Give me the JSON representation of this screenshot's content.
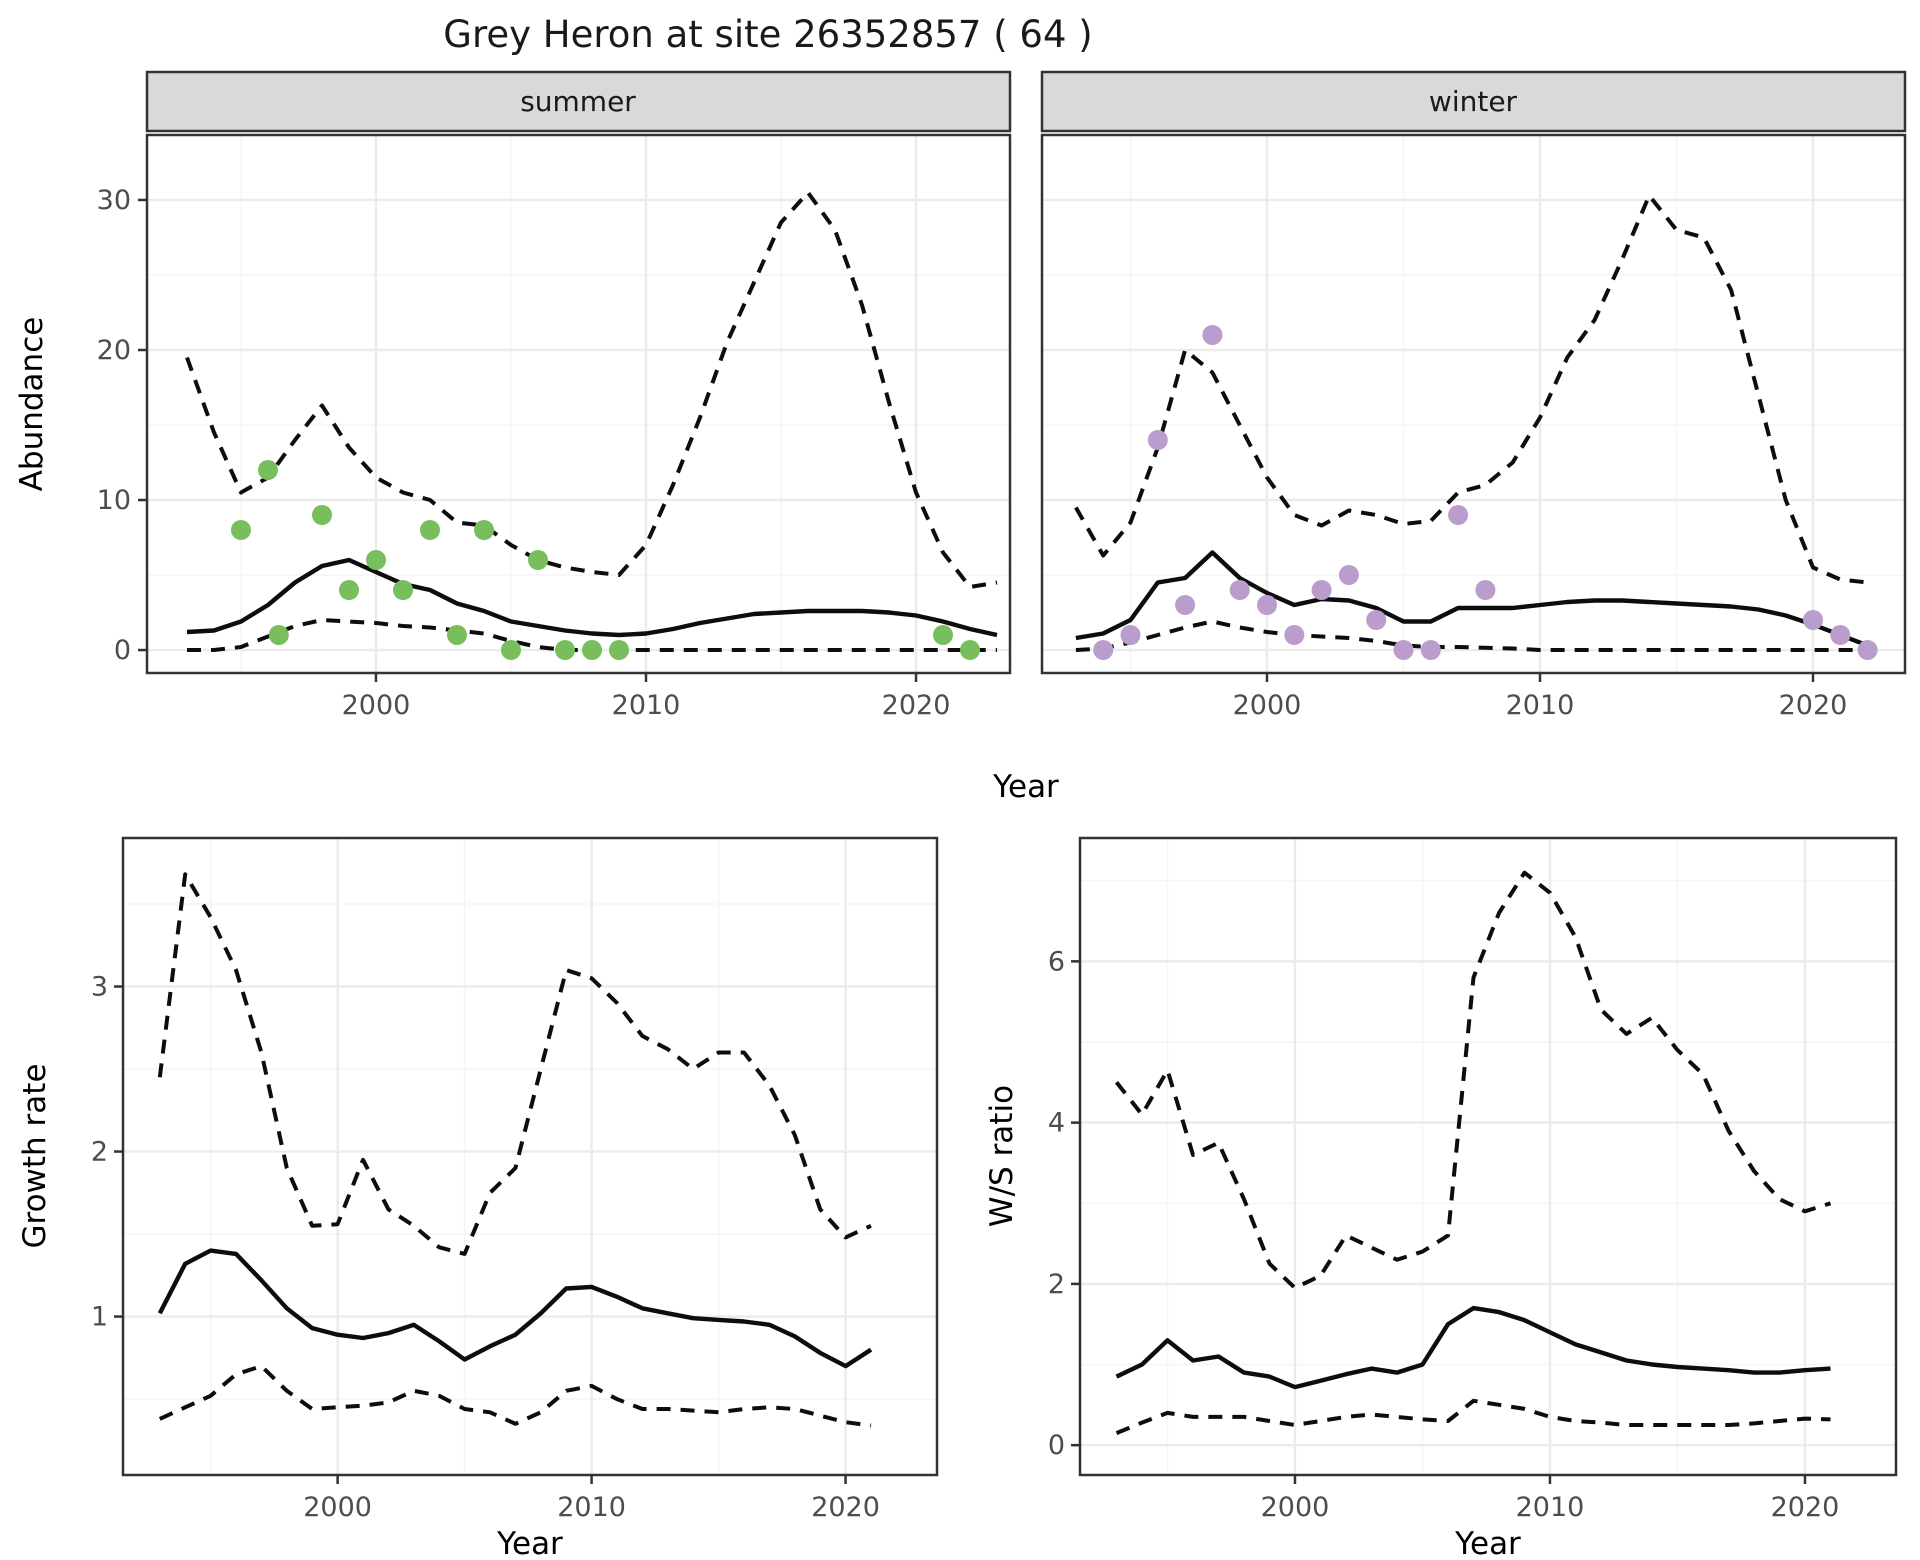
{
  "title": "Grey Heron at site 26352857 ( 64 )",
  "facet_labels": {
    "summer": "summer",
    "winter": "winter"
  },
  "axis_titles": {
    "x_top": "Year",
    "x_growth": "Year",
    "x_ws": "Year",
    "y_abundance": "Abundance",
    "y_growth": "Growth rate",
    "y_ws": "W/S ratio"
  },
  "colors": {
    "summer_points": "#78BE5C",
    "winter_points": "#BB9DCD",
    "line": "#0d0d0d",
    "strip_bg": "#D9D9D9",
    "panel_border": "#333333",
    "grid_major": "#EBEBEB",
    "grid_minor": "#F5F5F5",
    "tick_mark": "#333333"
  },
  "chart_data": [
    {
      "type": "line",
      "id": "abundance-summer",
      "facet": "summer",
      "ylabel": "Abundance",
      "xlabel": "Year",
      "xlim": [
        1991.52,
        2023.48
      ],
      "ylim": [
        -1.53,
        34.33
      ],
      "x_ticks": [
        2000,
        2010,
        2020
      ],
      "x_minor": [
        1995,
        2005,
        2015
      ],
      "y_ticks": [
        0,
        10,
        20,
        30
      ],
      "y_minor": [
        5,
        15,
        25
      ],
      "years": [
        1993,
        1994,
        1995,
        1996,
        1997,
        1998,
        1999,
        2000,
        2001,
        2002,
        2003,
        2004,
        2005,
        2006,
        2007,
        2008,
        2009,
        2010,
        2011,
        2012,
        2013,
        2014,
        2015,
        2016,
        2017,
        2018,
        2019,
        2020,
        2021,
        2022,
        2023
      ],
      "series": [
        {
          "name": "median",
          "style": "solid",
          "values": [
            1.2,
            1.3,
            1.9,
            3.0,
            4.5,
            5.6,
            6.0,
            5.2,
            4.4,
            4.0,
            3.1,
            2.6,
            1.9,
            1.6,
            1.3,
            1.1,
            1.0,
            1.1,
            1.4,
            1.8,
            2.1,
            2.4,
            2.5,
            2.6,
            2.6,
            2.6,
            2.5,
            2.3,
            1.9,
            1.4,
            1.0
          ]
        },
        {
          "name": "upper_ci",
          "style": "dashed",
          "values": [
            19.5,
            14.5,
            10.5,
            11.5,
            14.0,
            16.3,
            13.5,
            11.5,
            10.5,
            10.0,
            8.5,
            8.3,
            7.0,
            6.0,
            5.5,
            5.2,
            5.0,
            7.0,
            11.0,
            15.5,
            20.5,
            24.5,
            28.5,
            30.5,
            28.0,
            23.0,
            16.5,
            10.5,
            6.5,
            4.2,
            4.5
          ]
        },
        {
          "name": "lower_ci",
          "style": "dashed",
          "values": [
            0,
            0,
            0.2,
            0.9,
            1.6,
            2.0,
            1.9,
            1.8,
            1.6,
            1.5,
            1.3,
            1.1,
            0.6,
            0.2,
            0,
            0,
            0,
            0,
            0,
            0,
            0,
            0,
            0,
            0,
            0,
            0,
            0,
            0,
            0,
            0,
            0
          ]
        }
      ],
      "points": {
        "name": "observed_counts_summer",
        "color": "#78BE5C",
        "data": [
          [
            1995,
            8
          ],
          [
            1996,
            12
          ],
          [
            1996.4,
            1
          ],
          [
            1998,
            9
          ],
          [
            1999,
            4
          ],
          [
            2000,
            6
          ],
          [
            2001,
            4
          ],
          [
            2002,
            8
          ],
          [
            2003,
            1
          ],
          [
            2004,
            8
          ],
          [
            2005,
            0
          ],
          [
            2006,
            6
          ],
          [
            2007,
            0
          ],
          [
            2008,
            0
          ],
          [
            2009,
            0
          ],
          [
            2021,
            1
          ],
          [
            2022,
            0
          ]
        ]
      }
    },
    {
      "type": "line",
      "id": "abundance-winter",
      "facet": "winter",
      "ylabel": "Abundance",
      "xlabel": "Year",
      "xlim": [
        1991.76,
        2023.37
      ],
      "ylim": [
        -1.53,
        34.33
      ],
      "x_ticks": [
        2000,
        2010,
        2020
      ],
      "x_minor": [
        1995,
        2005,
        2015
      ],
      "y_ticks": [
        0,
        10,
        20,
        30
      ],
      "y_minor": [
        5,
        15,
        25
      ],
      "years": [
        1993,
        1994,
        1995,
        1996,
        1997,
        1998,
        1999,
        2000,
        2001,
        2002,
        2003,
        2004,
        2005,
        2006,
        2007,
        2008,
        2009,
        2010,
        2011,
        2012,
        2013,
        2014,
        2015,
        2016,
        2017,
        2018,
        2019,
        2020,
        2021,
        2022
      ],
      "series": [
        {
          "name": "median",
          "style": "solid",
          "values": [
            0.8,
            1.1,
            2.0,
            4.5,
            4.8,
            6.5,
            4.8,
            3.8,
            3.0,
            3.4,
            3.3,
            2.8,
            1.9,
            1.9,
            2.8,
            2.8,
            2.8,
            3.0,
            3.2,
            3.3,
            3.3,
            3.2,
            3.1,
            3.0,
            2.9,
            2.7,
            2.3,
            1.7,
            1.0,
            0.3
          ]
        },
        {
          "name": "upper_ci",
          "style": "dashed",
          "values": [
            9.5,
            6.3,
            8.5,
            13.5,
            20.0,
            18.5,
            15.0,
            11.5,
            9.0,
            8.3,
            9.3,
            9.0,
            8.4,
            8.6,
            10.5,
            11.0,
            12.5,
            15.5,
            19.5,
            22.0,
            26.0,
            30.3,
            28.0,
            27.5,
            24.0,
            17.0,
            10.0,
            5.5,
            4.7,
            4.5
          ]
        },
        {
          "name": "lower_ci",
          "style": "dashed",
          "values": [
            0,
            0.1,
            0.5,
            1.0,
            1.5,
            1.9,
            1.5,
            1.2,
            1.0,
            0.9,
            0.8,
            0.6,
            0.3,
            0.2,
            0.2,
            0.15,
            0.1,
            0,
            0,
            0,
            0,
            0,
            0,
            0,
            0,
            0,
            0,
            0,
            0,
            0
          ]
        }
      ],
      "points": {
        "name": "observed_counts_winter",
        "color": "#BB9DCD",
        "data": [
          [
            1994,
            0
          ],
          [
            1995,
            1
          ],
          [
            1996,
            14
          ],
          [
            1997,
            3
          ],
          [
            1998,
            21
          ],
          [
            1999,
            4
          ],
          [
            2000,
            3
          ],
          [
            2001,
            1
          ],
          [
            2002,
            4
          ],
          [
            2003,
            5
          ],
          [
            2004,
            2
          ],
          [
            2005,
            0
          ],
          [
            2006,
            0
          ],
          [
            2007,
            9
          ],
          [
            2008,
            4
          ],
          [
            2020,
            2
          ],
          [
            2021,
            1
          ],
          [
            2022,
            0
          ]
        ]
      }
    },
    {
      "type": "line",
      "id": "growth-rate",
      "ylabel": "Growth rate",
      "xlabel": "Year",
      "xlim": [
        1991.55,
        2023.6
      ],
      "ylim": [
        0.04,
        3.9
      ],
      "x_ticks": [
        2000,
        2010,
        2020
      ],
      "x_minor": [
        1995,
        2005,
        2015
      ],
      "y_ticks": [
        1,
        2,
        3
      ],
      "y_minor": [
        0.5,
        1.5,
        2.5,
        3.5
      ],
      "years": [
        1993,
        1994,
        1995,
        1996,
        1997,
        1998,
        1999,
        2000,
        2001,
        2002,
        2003,
        2004,
        2005,
        2006,
        2007,
        2008,
        2009,
        2010,
        2011,
        2012,
        2013,
        2014,
        2015,
        2016,
        2017,
        2018,
        2019,
        2020,
        2021
      ],
      "series": [
        {
          "name": "median",
          "style": "solid",
          "values": [
            1.02,
            1.32,
            1.4,
            1.38,
            1.22,
            1.05,
            0.93,
            0.89,
            0.87,
            0.9,
            0.95,
            0.85,
            0.74,
            0.82,
            0.89,
            1.02,
            1.17,
            1.18,
            1.12,
            1.05,
            1.02,
            0.99,
            0.98,
            0.97,
            0.95,
            0.88,
            0.78,
            0.7,
            0.8
          ]
        },
        {
          "name": "upper_ci",
          "style": "dashed",
          "values": [
            2.45,
            3.68,
            3.42,
            3.1,
            2.6,
            1.9,
            1.55,
            1.56,
            1.95,
            1.65,
            1.55,
            1.42,
            1.38,
            1.75,
            1.9,
            2.5,
            3.1,
            3.05,
            2.9,
            2.7,
            2.62,
            2.5,
            2.6,
            2.6,
            2.4,
            2.1,
            1.65,
            1.48,
            1.55
          ]
        },
        {
          "name": "lower_ci",
          "style": "dashed",
          "values": [
            0.38,
            0.45,
            0.52,
            0.65,
            0.7,
            0.55,
            0.44,
            0.45,
            0.46,
            0.48,
            0.55,
            0.52,
            0.44,
            0.42,
            0.35,
            0.42,
            0.55,
            0.58,
            0.5,
            0.44,
            0.44,
            0.43,
            0.42,
            0.44,
            0.45,
            0.44,
            0.4,
            0.36,
            0.34
          ]
        }
      ]
    },
    {
      "type": "line",
      "id": "ws-ratio",
      "ylabel": "W/S ratio",
      "xlabel": "Year",
      "xlim": [
        1991.57,
        2023.57
      ],
      "ylim": [
        -0.37,
        7.53
      ],
      "x_ticks": [
        2000,
        2010,
        2020
      ],
      "x_minor": [
        1995,
        2005,
        2015
      ],
      "y_ticks": [
        0,
        2,
        4,
        6
      ],
      "y_minor": [
        1,
        3,
        5,
        7
      ],
      "years": [
        1993,
        1994,
        1995,
        1996,
        1997,
        1998,
        1999,
        2000,
        2001,
        2002,
        2003,
        2004,
        2005,
        2006,
        2007,
        2008,
        2009,
        2010,
        2011,
        2012,
        2013,
        2014,
        2015,
        2016,
        2017,
        2018,
        2019,
        2020,
        2021
      ],
      "series": [
        {
          "name": "median",
          "style": "solid",
          "values": [
            0.85,
            1.0,
            1.3,
            1.05,
            1.1,
            0.9,
            0.85,
            0.72,
            0.8,
            0.88,
            0.95,
            0.9,
            1.0,
            1.5,
            1.7,
            1.65,
            1.55,
            1.4,
            1.25,
            1.15,
            1.05,
            1.0,
            0.97,
            0.95,
            0.93,
            0.9,
            0.9,
            0.93,
            0.95
          ]
        },
        {
          "name": "upper_ci",
          "style": "dashed",
          "values": [
            4.5,
            4.1,
            4.65,
            3.6,
            3.75,
            3.05,
            2.25,
            1.95,
            2.1,
            2.6,
            2.45,
            2.3,
            2.4,
            2.6,
            5.8,
            6.6,
            7.1,
            6.85,
            6.3,
            5.4,
            5.1,
            5.3,
            4.9,
            4.6,
            3.9,
            3.4,
            3.05,
            2.9,
            3.0
          ]
        },
        {
          "name": "lower_ci",
          "style": "dashed",
          "values": [
            0.15,
            0.28,
            0.4,
            0.35,
            0.35,
            0.35,
            0.3,
            0.25,
            0.3,
            0.35,
            0.38,
            0.35,
            0.32,
            0.3,
            0.55,
            0.5,
            0.45,
            0.35,
            0.3,
            0.28,
            0.25,
            0.25,
            0.25,
            0.25,
            0.25,
            0.27,
            0.3,
            0.33,
            0.32
          ]
        }
      ]
    }
  ]
}
